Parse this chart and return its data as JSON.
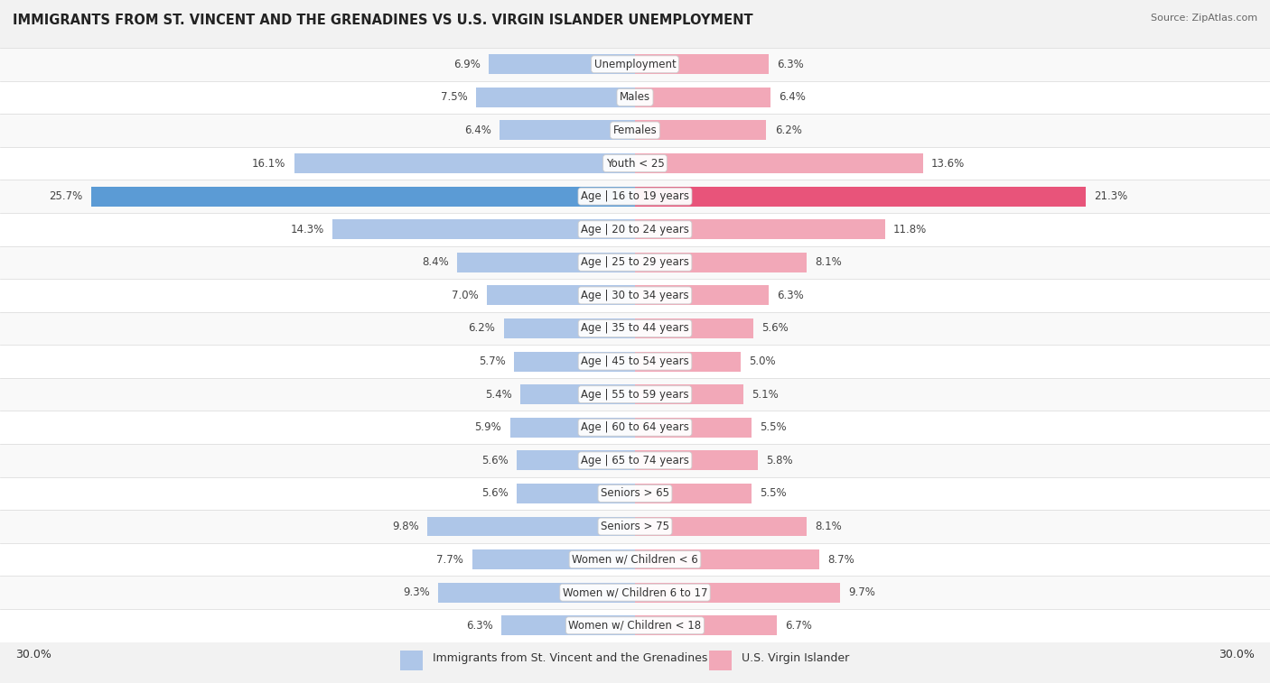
{
  "title": "IMMIGRANTS FROM ST. VINCENT AND THE GRENADINES VS U.S. VIRGIN ISLANDER UNEMPLOYMENT",
  "source": "Source: ZipAtlas.com",
  "categories": [
    "Unemployment",
    "Males",
    "Females",
    "Youth < 25",
    "Age | 16 to 19 years",
    "Age | 20 to 24 years",
    "Age | 25 to 29 years",
    "Age | 30 to 34 years",
    "Age | 35 to 44 years",
    "Age | 45 to 54 years",
    "Age | 55 to 59 years",
    "Age | 60 to 64 years",
    "Age | 65 to 74 years",
    "Seniors > 65",
    "Seniors > 75",
    "Women w/ Children < 6",
    "Women w/ Children 6 to 17",
    "Women w/ Children < 18"
  ],
  "left_values": [
    6.9,
    7.5,
    6.4,
    16.1,
    25.7,
    14.3,
    8.4,
    7.0,
    6.2,
    5.7,
    5.4,
    5.9,
    5.6,
    5.6,
    9.8,
    7.7,
    9.3,
    6.3
  ],
  "right_values": [
    6.3,
    6.4,
    6.2,
    13.6,
    21.3,
    11.8,
    8.1,
    6.3,
    5.6,
    5.0,
    5.1,
    5.5,
    5.8,
    5.5,
    8.1,
    8.7,
    9.7,
    6.7
  ],
  "left_color_normal": "#aec6e8",
  "right_color_normal": "#f2a8b8",
  "left_color_highlight": "#5b9bd5",
  "right_color_highlight": "#e8547a",
  "bg_color": "#f2f2f2",
  "row_color_even": "#f9f9f9",
  "row_color_odd": "#ffffff",
  "xlim": 30.0,
  "legend_left": "Immigrants from St. Vincent and the Grenadines",
  "legend_right": "U.S. Virgin Islander",
  "bar_height": 0.6,
  "label_fontsize": 8.5,
  "title_fontsize": 10.5,
  "source_fontsize": 8
}
